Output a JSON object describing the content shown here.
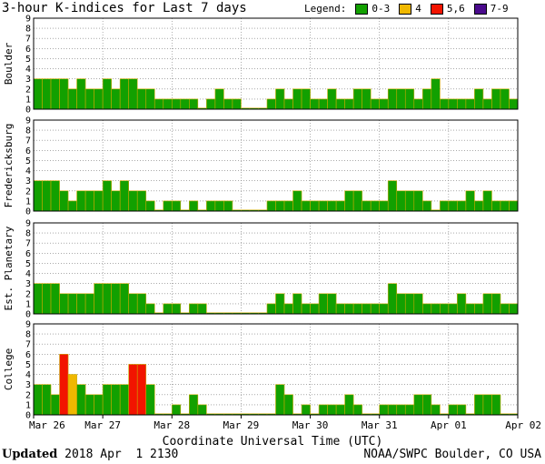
{
  "title": "3-hour K-indices for Last 7 days",
  "legend": {
    "label": "Legend:",
    "items": [
      {
        "label": "0-3",
        "color": "#12A000"
      },
      {
        "label": "4",
        "color": "#F0B800"
      },
      {
        "label": "5,6",
        "color": "#F21400"
      },
      {
        "label": "7-9",
        "color": "#4A0A8C"
      }
    ]
  },
  "footer": {
    "updated_label": "Updated",
    "updated_value": "2018 Apr  1 2130",
    "credit": "NOAA/SWPC Boulder, CO USA"
  },
  "chart_data": {
    "type": "bar",
    "title": "3-hour K-indices for Last 7 days",
    "xlabel": "Coordinate Universal Time (UTC)",
    "x_ticks": [
      "Mar 26",
      "Mar 27",
      "Mar 28",
      "Mar 29",
      "Mar 30",
      "Mar 31",
      "Apr 01",
      "Apr 02"
    ],
    "ylim": [
      0,
      9
    ],
    "y_ticks": [
      0,
      1,
      2,
      3,
      4,
      5,
      6,
      7,
      8,
      9
    ],
    "bars_per_day": 8,
    "color_scale": {
      "0-3": "#12A000",
      "4": "#F0B800",
      "5,6": "#F21400",
      "7-9": "#4A0A8C"
    },
    "series": [
      {
        "name": "Boulder",
        "values": [
          3,
          3,
          3,
          3,
          2,
          3,
          2,
          2,
          3,
          2,
          3,
          3,
          2,
          2,
          1,
          1,
          1,
          1,
          1,
          0,
          1,
          2,
          1,
          1,
          0,
          0,
          0,
          1,
          2,
          1,
          2,
          2,
          1,
          1,
          2,
          1,
          1,
          2,
          2,
          1,
          1,
          2,
          2,
          2,
          1,
          2,
          3,
          1,
          1,
          1,
          1,
          2,
          1,
          2,
          2,
          1,
          0
        ]
      },
      {
        "name": "Fredericksburg",
        "values": [
          3,
          3,
          3,
          2,
          1,
          2,
          2,
          2,
          3,
          2,
          3,
          2,
          2,
          1,
          0,
          1,
          1,
          0,
          1,
          0,
          1,
          1,
          1,
          0,
          0,
          0,
          0,
          1,
          1,
          1,
          2,
          1,
          1,
          1,
          1,
          1,
          2,
          2,
          1,
          1,
          1,
          3,
          2,
          2,
          2,
          1,
          0,
          1,
          1,
          1,
          2,
          1,
          2,
          1,
          1,
          1,
          0
        ]
      },
      {
        "name": "Est. Planetary",
        "values": [
          3,
          3,
          3,
          2,
          2,
          2,
          2,
          3,
          3,
          3,
          3,
          2,
          2,
          1,
          0,
          1,
          1,
          0,
          1,
          1,
          0,
          0,
          0,
          0,
          0,
          0,
          0,
          1,
          2,
          1,
          2,
          1,
          1,
          2,
          2,
          1,
          1,
          1,
          1,
          1,
          1,
          3,
          2,
          2,
          2,
          1,
          1,
          1,
          1,
          2,
          1,
          1,
          2,
          2,
          1,
          1
        ]
      },
      {
        "name": "College",
        "values": [
          3,
          3,
          2,
          6,
          4,
          3,
          2,
          2,
          3,
          3,
          3,
          5,
          5,
          3,
          0,
          0,
          1,
          0,
          2,
          1,
          0,
          0,
          0,
          0,
          0,
          0,
          0,
          0,
          3,
          2,
          0,
          1,
          0,
          1,
          1,
          1,
          2,
          1,
          0,
          0,
          1,
          1,
          1,
          1,
          2,
          2,
          1,
          0,
          1,
          1,
          0,
          2,
          2,
          2,
          0,
          0,
          1,
          0
        ]
      }
    ]
  }
}
